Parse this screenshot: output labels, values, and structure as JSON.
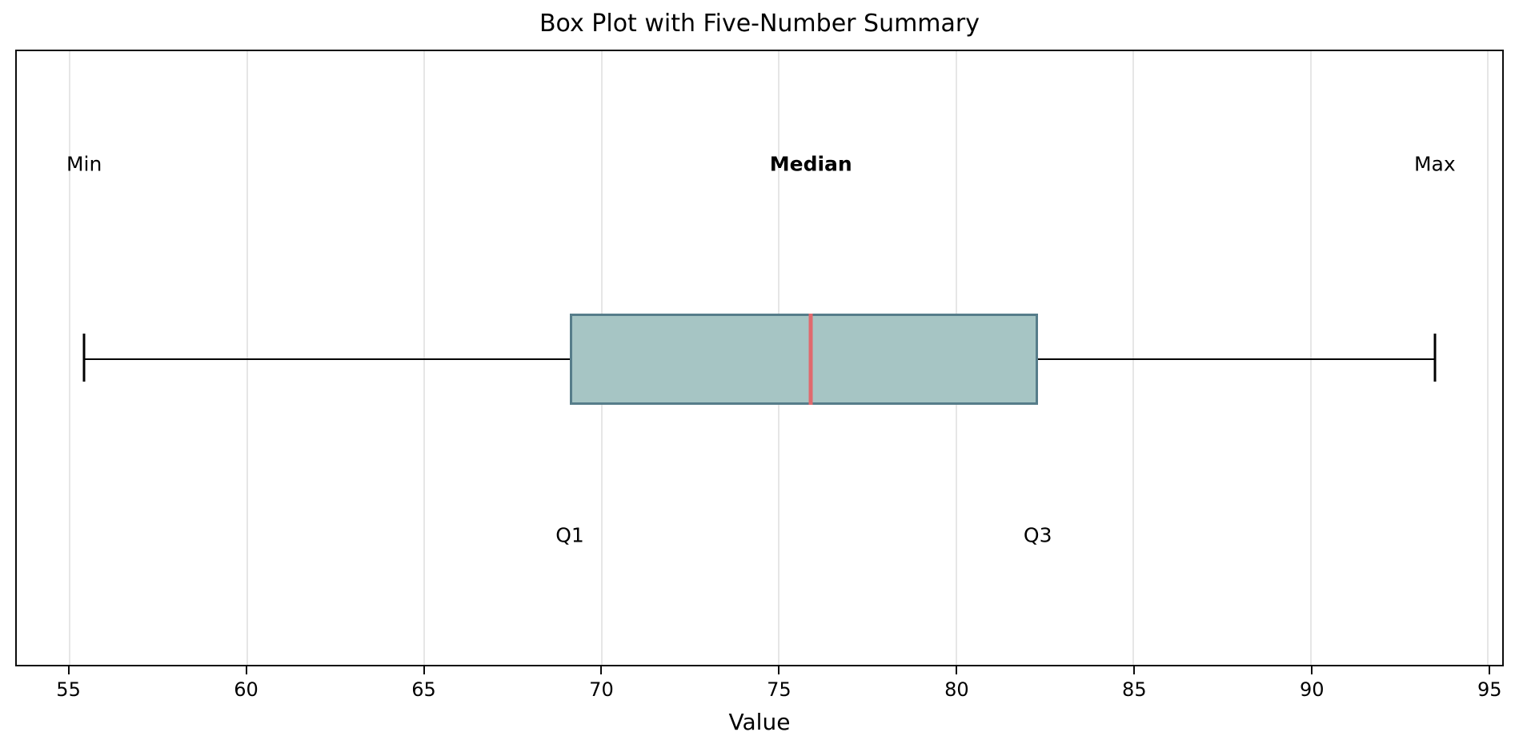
{
  "chart_data": {
    "type": "boxplot",
    "title": "Box Plot with Five-Number Summary",
    "xlabel": "Value",
    "orientation": "horizontal",
    "xlim": [
      53.5,
      95.4
    ],
    "x_ticks": [
      55,
      60,
      65,
      70,
      75,
      80,
      85,
      90,
      95
    ],
    "grid": "vertical-on",
    "five_number_summary": {
      "min": 55.4,
      "q1": 69.1,
      "median": 75.9,
      "q3": 82.3,
      "max": 93.5
    },
    "annotations": {
      "min_label": "Min",
      "median_label": "Median",
      "max_label": "Max",
      "q1_label": "Q1",
      "q3_label": "Q3"
    },
    "colors": {
      "box_fill": "#a6c5c4",
      "box_edge": "#567d8a",
      "median_line": "#e06a6e",
      "whisker": "#000000",
      "gridline": "#e6e6e6",
      "axis_frame": "#0b0b0b",
      "text": "#000000",
      "background": "#ffffff"
    }
  }
}
